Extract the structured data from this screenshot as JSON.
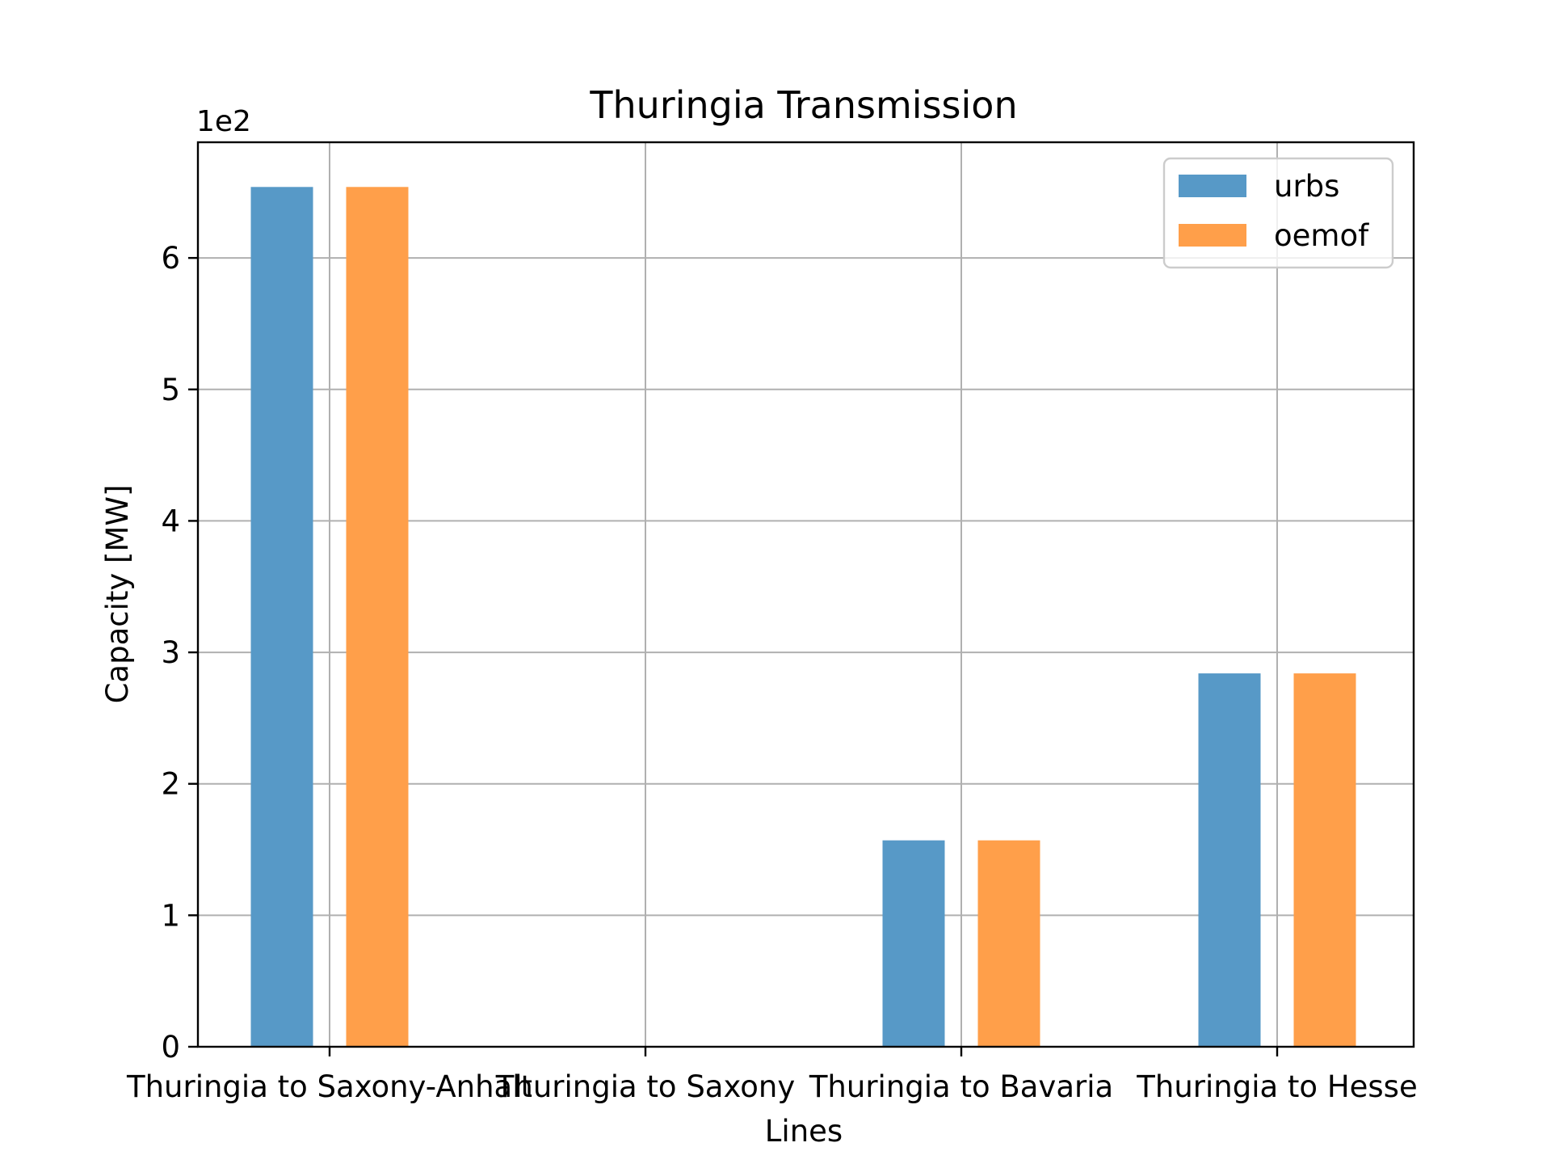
{
  "chart_data": {
    "type": "bar",
    "title": "Thuringia Transmission",
    "xlabel": "Lines",
    "ylabel": "Capacity [MW]",
    "y_offset_label": "1e2",
    "categories": [
      "Thuringia to Saxony-Anhalt",
      "Thuringia to Saxony",
      "Thuringia to Bavaria",
      "Thuringia to Hesse"
    ],
    "series": [
      {
        "name": "urbs",
        "values": [
          654,
          0,
          157,
          284
        ],
        "color": "#5799c7"
      },
      {
        "name": "oemof",
        "values": [
          654,
          0,
          157,
          284
        ],
        "color": "#ff9f4a"
      }
    ],
    "ylim": [
      0,
      688
    ],
    "yticks": [
      0,
      100,
      200,
      300,
      400,
      500,
      600
    ],
    "ytick_labels": [
      "0",
      "1",
      "2",
      "3",
      "4",
      "5",
      "6"
    ],
    "grid": true,
    "legend_position": "top-right"
  }
}
